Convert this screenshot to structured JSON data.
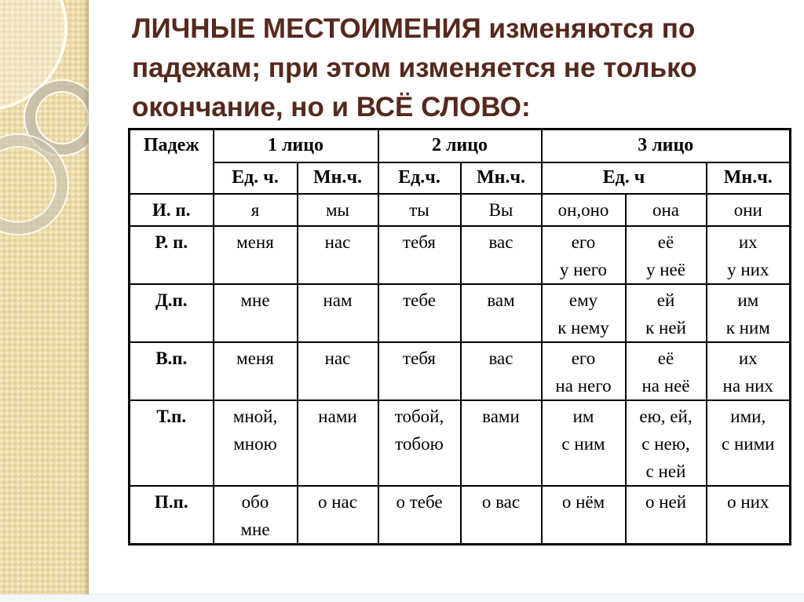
{
  "slide": {
    "title_lines": [
      "ЛИЧНЫЕ МЕСТОИМЕНИЯ изменяются по",
      "падежам; при этом изменяется не только",
      "окончание, но и ВСЁ СЛОВО:"
    ]
  },
  "table": {
    "corner_label": "Падеж",
    "person_groups": [
      {
        "label": "1 лицо",
        "colspan": 2
      },
      {
        "label": "2 лицо",
        "colspan": 2
      },
      {
        "label": "3 лицо",
        "colspan": 3
      }
    ],
    "number_headers": [
      {
        "label": "Ед. ч.",
        "colspan": 1
      },
      {
        "label": "Мн.ч.",
        "colspan": 1
      },
      {
        "label": "Ед.ч.",
        "colspan": 1
      },
      {
        "label": "Мн.ч.",
        "colspan": 1
      },
      {
        "label": "Ед. ч",
        "colspan": 2
      },
      {
        "label": "Мн.ч.",
        "colspan": 1
      }
    ],
    "rows": [
      {
        "case": "И. п.",
        "cells": [
          "я",
          "мы",
          "ты",
          "Вы",
          "он,оно",
          "она",
          "они"
        ]
      },
      {
        "case": "Р. п.",
        "cells": [
          "меня",
          "нас",
          "тебя",
          "вас",
          "его\nу него",
          "её\nу неё",
          "их\nу них"
        ]
      },
      {
        "case": "Д.п.",
        "cells": [
          "мне",
          "нам",
          "тебе",
          "вам",
          "ему\nк нему",
          "ей\nк ней",
          "им\nк ним"
        ]
      },
      {
        "case": "В.п.",
        "cells": [
          "меня",
          "нас",
          "тебя",
          "вас",
          "его\nна него",
          "её\nна неё",
          "их\nна них"
        ]
      },
      {
        "case": "Т.п.",
        "cells": [
          "мной,\nмною",
          "нами",
          "тобой,\nтобою",
          "вами",
          "им\nс ним",
          "ею, ей,\nс нею,\nс ней",
          "ими,\nс ними"
        ]
      },
      {
        "case": "П.п.",
        "cells": [
          "обо\nмне",
          "о нас",
          "о тебе",
          "о вас",
          "о нём",
          "о ней",
          "о них"
        ]
      }
    ]
  },
  "colors": {
    "title_text": "#55291d",
    "table_border": "#000000",
    "side_strip": "#eddca9",
    "bottom_strip": "#f3f7fa"
  }
}
